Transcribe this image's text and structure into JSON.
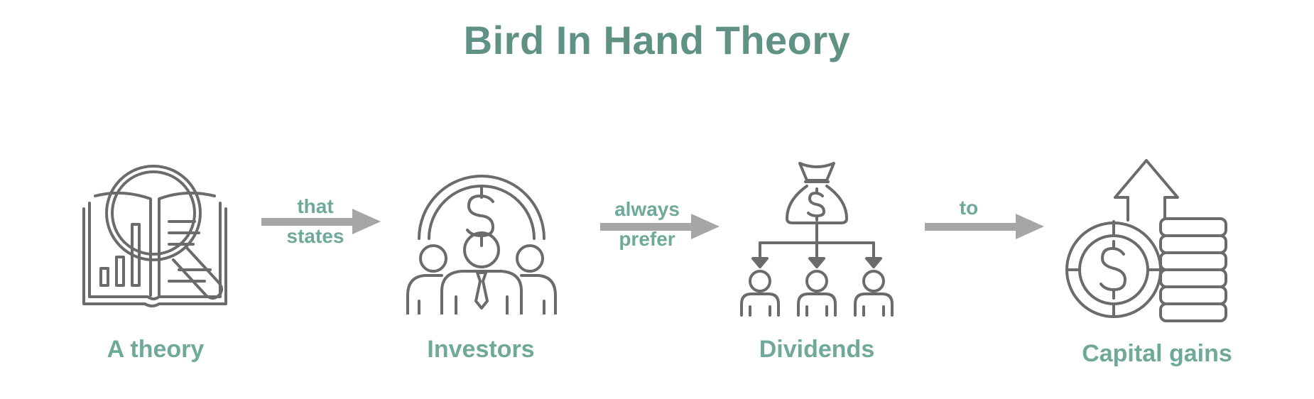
{
  "title": "Bird In Hand Theory",
  "colors": {
    "title": "#5f9184",
    "label": "#6fa99a",
    "icon_stroke": "#6b6b6b",
    "arrow": "#a6a6a6"
  },
  "nodes": [
    {
      "label": "A theory",
      "icon": "book-magnifier-chart-icon"
    },
    {
      "label": "Investors",
      "icon": "investors-dollar-group-icon"
    },
    {
      "label": "Dividends",
      "icon": "money-bag-distribution-icon"
    },
    {
      "label": "Capital gains",
      "icon": "coins-growth-arrow-icon"
    }
  ],
  "connectors": [
    {
      "line1": "that",
      "line2": "states"
    },
    {
      "line1": "always",
      "line2": "prefer"
    },
    {
      "line1": "to",
      "line2": ""
    }
  ]
}
